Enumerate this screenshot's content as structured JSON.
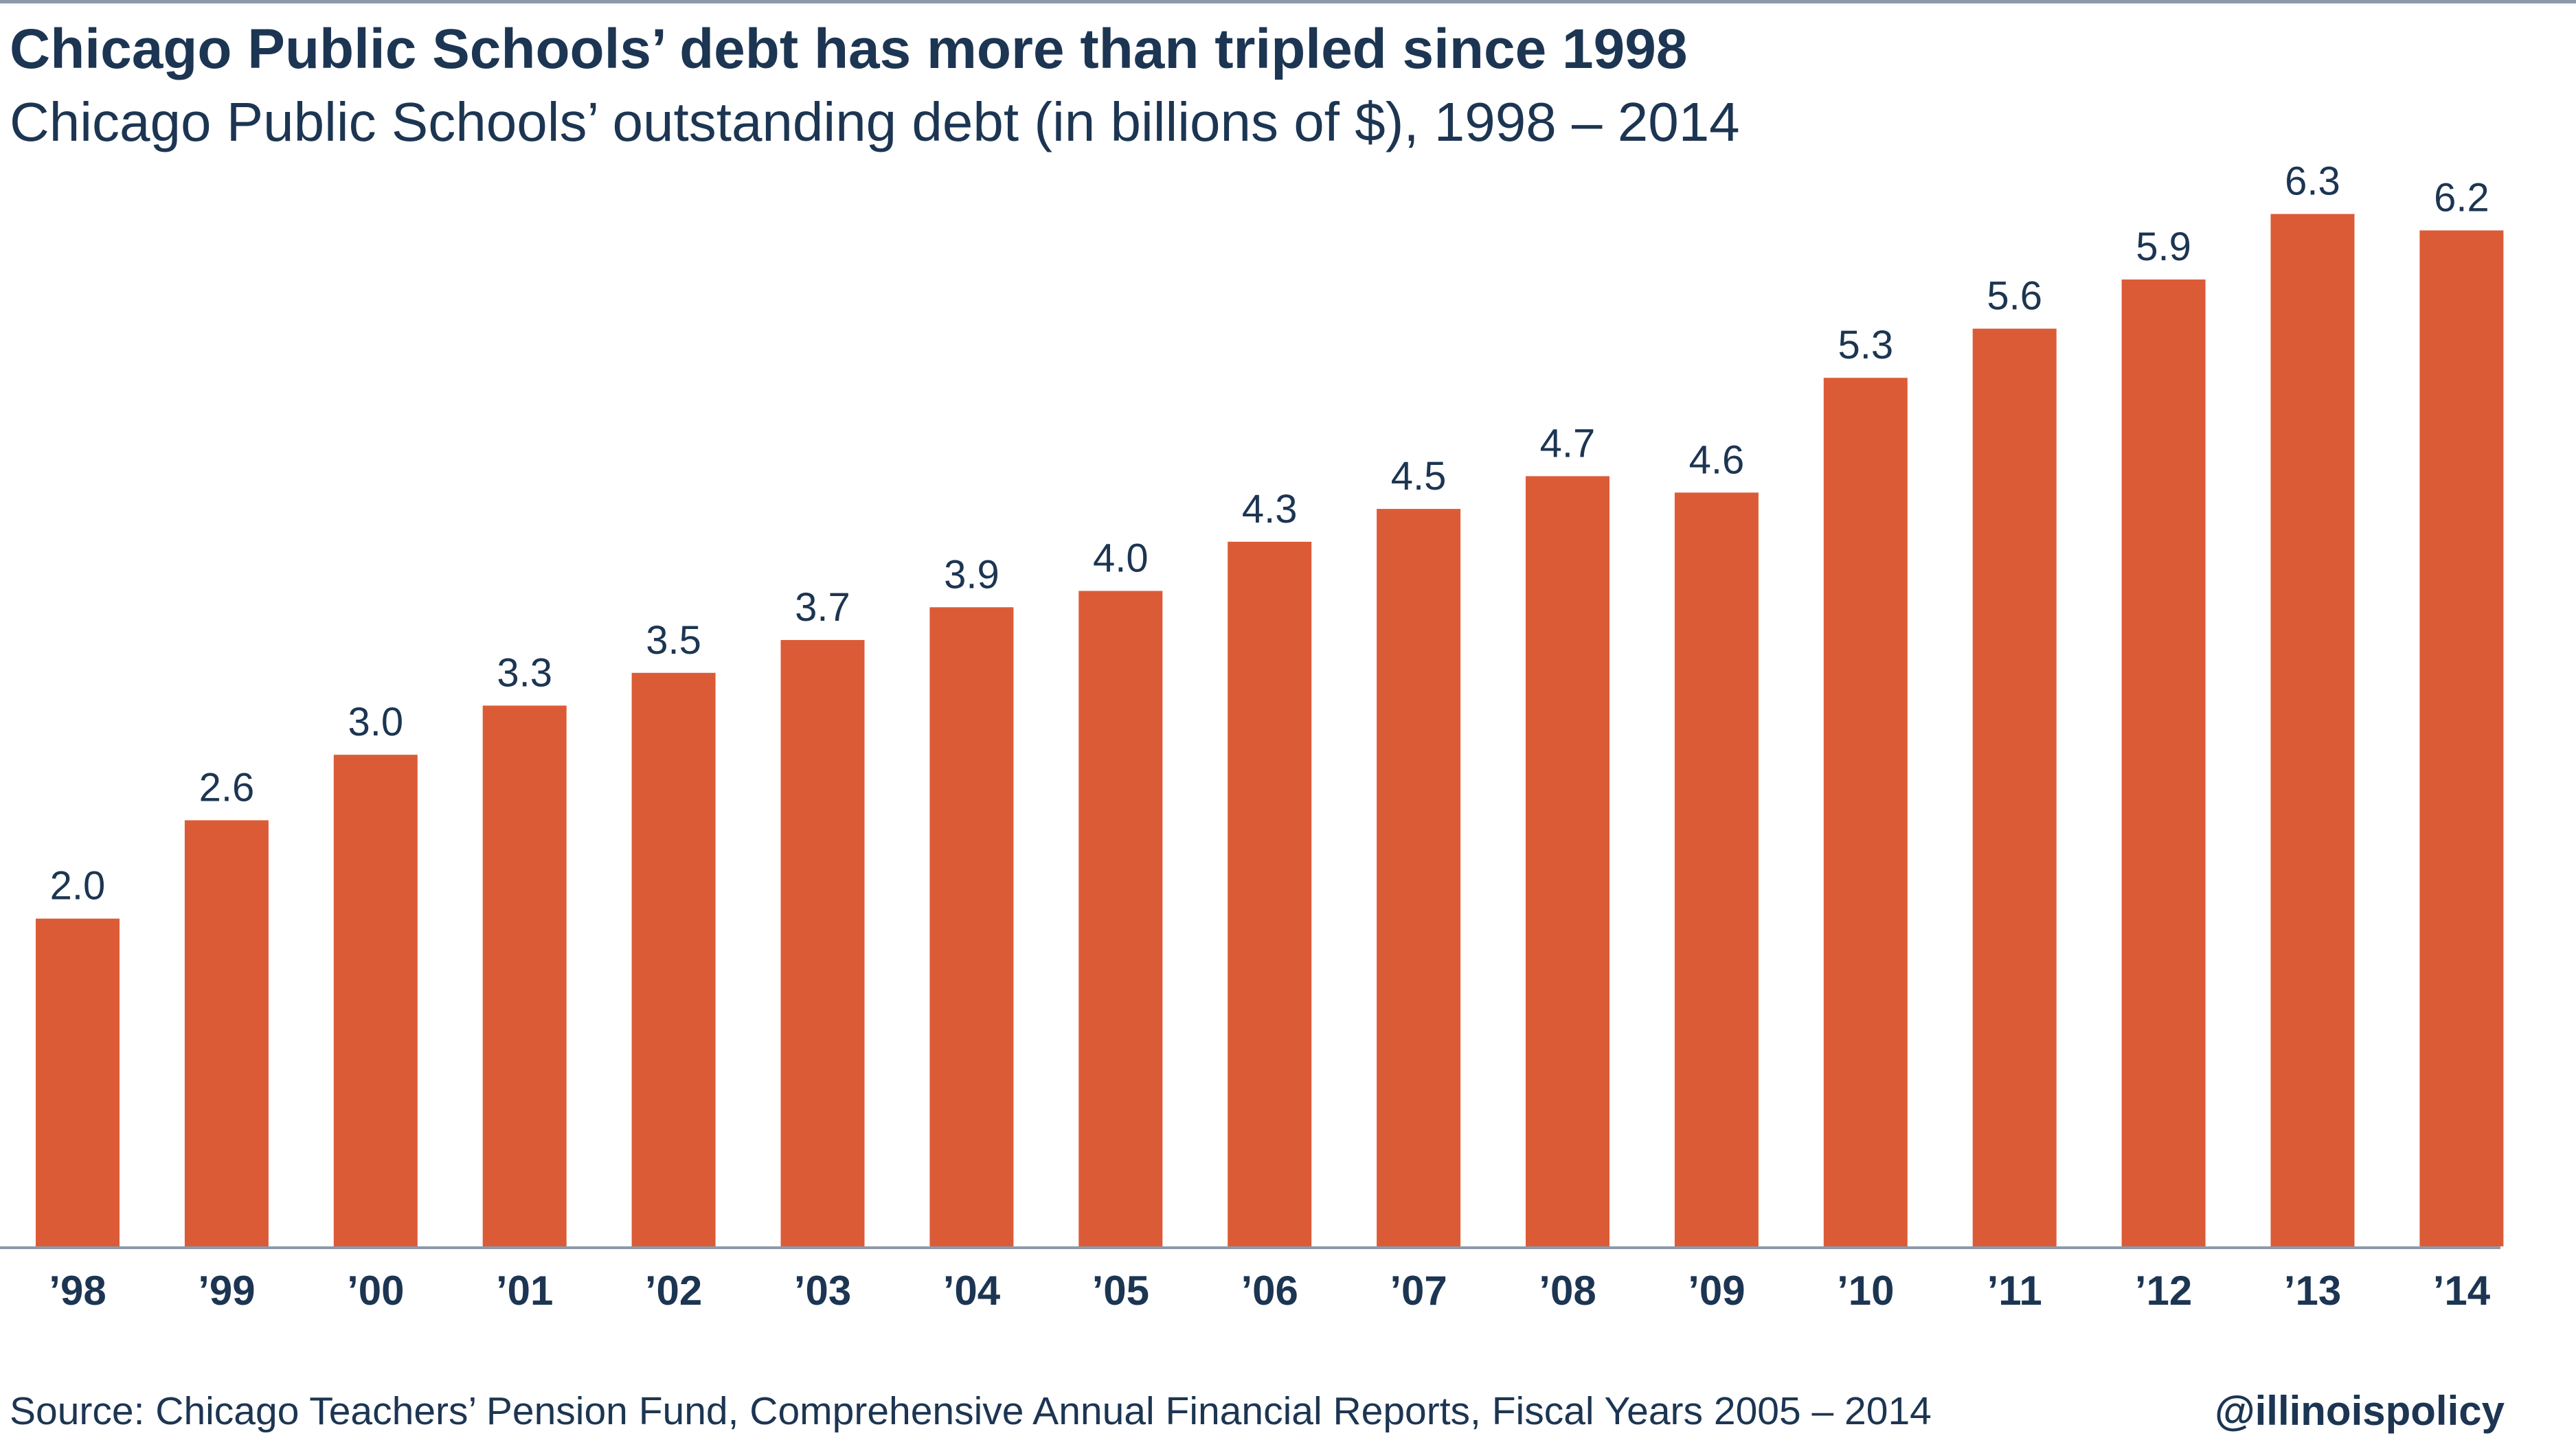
{
  "chart_data": {
    "type": "bar",
    "title": "Chicago Public Schools’ debt has more than tripled since 1998",
    "subtitle": "Chicago Public Schools’ outstanding debt (in billions of $), 1998 – 2014",
    "categories": [
      "’98",
      "’99",
      "’00",
      "’01",
      "’02",
      "’03",
      "’04",
      "’05",
      "’06",
      "’07",
      "’08",
      "’09",
      "’10",
      "’11",
      "’12",
      "’13",
      "’14"
    ],
    "values": [
      2.0,
      2.6,
      3.0,
      3.3,
      3.5,
      3.7,
      3.9,
      4.0,
      4.3,
      4.5,
      4.7,
      4.6,
      5.3,
      5.6,
      5.9,
      6.3,
      6.2
    ],
    "value_labels": [
      "2.0",
      "2.6",
      "3.0",
      "3.3",
      "3.5",
      "3.7",
      "3.9",
      "4.0",
      "4.3",
      "4.5",
      "4.7",
      "4.6",
      "5.3",
      "5.6",
      "5.9",
      "6.3",
      "6.2"
    ],
    "xlabel": "",
    "ylabel": "",
    "ylim": [
      0,
      6.6
    ],
    "grid": false,
    "bar_color": "#dc5b37",
    "text_color": "#1c3552"
  },
  "footer": {
    "source": "Source: Chicago Teachers’ Pension Fund, Comprehensive Annual Financial Reports, Fiscal Years 2005 – 2014",
    "handle": "@illinoispolicy"
  }
}
